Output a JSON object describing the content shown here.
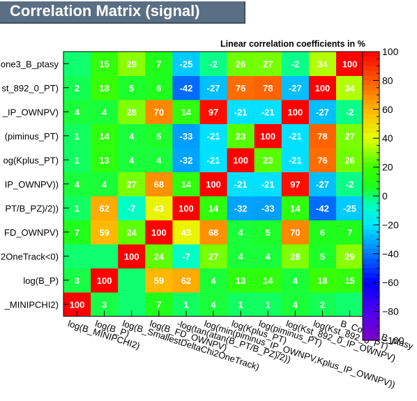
{
  "window": {
    "title": "Correlation Matrix (signal)"
  },
  "chart_data": {
    "type": "heatmap",
    "title": "Correlation Matrix (signal)",
    "subtitle": "Linear correlation coefficients in %",
    "variables_x_labels": [
      "log(B_MINIPCHI2)",
      "log(B_P)",
      "log(B_SmallestDeltaChi2OneTrack)",
      "log(B_FD_OWNPV)",
      "-log(tan(atan(B_PT/B_PZ)/2))",
      "log(min(piminus_IP_OWNPV,Kplus_IP_OWNPV))",
      "log(Kplus_PT)",
      "log(piminus_PT)",
      "log(Kst_892_0_IP_OWNPV)",
      "log(Kst_892_0_PT)",
      "B_Cone3_B_ptasy"
    ],
    "variables_y_labels": [
      "_MINIPCHI2)",
      "log(B_P)",
      "2OneTrack<0)",
      "FD_OWNPV)",
      "PT/B_PZ)/2))",
      "IP_OWNPV))",
      "og(Kplus_PT)",
      "(piminus_PT)",
      "_IP_OWNPV)",
      "st_892_0_PT)",
      "one3_B_ptasy"
    ],
    "values": [
      [
        100,
        3,
        null,
        7,
        1,
        4,
        1,
        1,
        4,
        2,
        null
      ],
      [
        3,
        100,
        null,
        59,
        62,
        4,
        13,
        14,
        4,
        18,
        15
      ],
      [
        null,
        null,
        100,
        24,
        -7,
        27,
        4,
        4,
        28,
        5,
        29
      ],
      [
        7,
        59,
        24,
        100,
        43,
        68,
        4,
        5,
        70,
        6,
        7
      ],
      [
        1,
        62,
        -7,
        43,
        100,
        14,
        -32,
        -33,
        14,
        -42,
        -25
      ],
      [
        4,
        4,
        27,
        68,
        14,
        100,
        -21,
        -21,
        97,
        -27,
        -2
      ],
      [
        1,
        13,
        4,
        4,
        -32,
        -21,
        100,
        23,
        -21,
        76,
        26
      ],
      [
        1,
        14,
        4,
        5,
        -33,
        -21,
        23,
        100,
        -21,
        78,
        27
      ],
      [
        4,
        4,
        28,
        70,
        14,
        97,
        -21,
        -21,
        100,
        -27,
        -2
      ],
      [
        2,
        18,
        5,
        6,
        -42,
        -27,
        76,
        78,
        -27,
        100,
        34
      ],
      [
        null,
        15,
        29,
        7,
        -25,
        -2,
        26,
        27,
        -2,
        34,
        100
      ]
    ],
    "colorbar_ticks": [
      "100",
      "80",
      "60",
      "40",
      "20",
      "0",
      "−20",
      "−40",
      "−60",
      "−80",
      "−100"
    ],
    "zlim": [
      -100,
      100
    ]
  }
}
